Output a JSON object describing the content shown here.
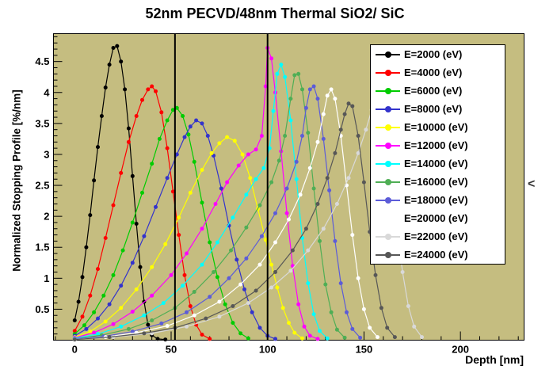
{
  "title": "52nm PECVD/48nm Thermal SiO2/ SiC",
  "right_chevron": "<",
  "chart_data": {
    "type": "line",
    "title": "52nm PECVD/48nm Thermal SiO2/ SiC",
    "xlabel": "Depth [nm]",
    "ylabel": "Normalized Stopping Profile [%/nm]",
    "xlim": [
      -11,
      233
    ],
    "ylim": [
      0,
      4.95
    ],
    "x_ticks": [
      0,
      50,
      100,
      150,
      200
    ],
    "y_ticks": [
      0.5,
      1,
      1.5,
      2,
      2.5,
      3,
      3.5,
      4,
      4.5
    ],
    "plot_bg": "#c5bd80",
    "grid": false,
    "legend_position": "top-right",
    "vertical_lines": [
      52,
      100
    ],
    "series": [
      {
        "label": "E=2000 (eV)",
        "color": "#000000",
        "points": [
          [
            0,
            0.32
          ],
          [
            2,
            0.62
          ],
          [
            4,
            1.02
          ],
          [
            6,
            1.5
          ],
          [
            8,
            2.02
          ],
          [
            10,
            2.58
          ],
          [
            12,
            3.12
          ],
          [
            14,
            3.62
          ],
          [
            16,
            4.08
          ],
          [
            18,
            4.45
          ],
          [
            20,
            4.72
          ],
          [
            22,
            4.75
          ],
          [
            24,
            4.5
          ],
          [
            26,
            4.05
          ],
          [
            28,
            3.42
          ],
          [
            30,
            2.65
          ],
          [
            32,
            1.88
          ],
          [
            34,
            1.18
          ],
          [
            36,
            0.62
          ],
          [
            38,
            0.25
          ],
          [
            40,
            0.08
          ],
          [
            43,
            0.02
          ],
          [
            47,
            0.01
          ]
        ]
      },
      {
        "label": "E=4000 (eV)",
        "color": "#ff0000",
        "points": [
          [
            0,
            0.15
          ],
          [
            4,
            0.38
          ],
          [
            8,
            0.72
          ],
          [
            12,
            1.15
          ],
          [
            16,
            1.65
          ],
          [
            20,
            2.18
          ],
          [
            24,
            2.7
          ],
          [
            28,
            3.2
          ],
          [
            32,
            3.62
          ],
          [
            35,
            3.88
          ],
          [
            38,
            4.05
          ],
          [
            40,
            4.1
          ],
          [
            42,
            4.02
          ],
          [
            45,
            3.68
          ],
          [
            48,
            3.1
          ],
          [
            51,
            2.4
          ],
          [
            54,
            1.7
          ],
          [
            57,
            1.05
          ],
          [
            60,
            0.55
          ],
          [
            63,
            0.25
          ],
          [
            66,
            0.09
          ],
          [
            70,
            0.02
          ]
        ]
      },
      {
        "label": "E=6000 (eV)",
        "color": "#00cc00",
        "points": [
          [
            0,
            0.1
          ],
          [
            5,
            0.24
          ],
          [
            10,
            0.45
          ],
          [
            15,
            0.72
          ],
          [
            20,
            1.05
          ],
          [
            25,
            1.45
          ],
          [
            30,
            1.9
          ],
          [
            35,
            2.38
          ],
          [
            40,
            2.85
          ],
          [
            44,
            3.25
          ],
          [
            48,
            3.55
          ],
          [
            51,
            3.72
          ],
          [
            53,
            3.75
          ],
          [
            56,
            3.62
          ],
          [
            59,
            3.32
          ],
          [
            62,
            2.88
          ],
          [
            66,
            2.22
          ],
          [
            70,
            1.58
          ],
          [
            74,
            1.02
          ],
          [
            78,
            0.58
          ],
          [
            82,
            0.28
          ],
          [
            86,
            0.11
          ],
          [
            90,
            0.03
          ]
        ]
      },
      {
        "label": "E=8000 (eV)",
        "color": "#3333cc",
        "points": [
          [
            0,
            0.07
          ],
          [
            6,
            0.18
          ],
          [
            12,
            0.35
          ],
          [
            18,
            0.58
          ],
          [
            24,
            0.88
          ],
          [
            30,
            1.25
          ],
          [
            36,
            1.68
          ],
          [
            42,
            2.15
          ],
          [
            48,
            2.62
          ],
          [
            53,
            3.0
          ],
          [
            57,
            3.28
          ],
          [
            60,
            3.45
          ],
          [
            63,
            3.55
          ],
          [
            66,
            3.5
          ],
          [
            69,
            3.3
          ],
          [
            72,
            2.98
          ],
          [
            76,
            2.45
          ],
          [
            80,
            1.85
          ],
          [
            84,
            1.3
          ],
          [
            88,
            0.82
          ],
          [
            92,
            0.45
          ],
          [
            96,
            0.2
          ],
          [
            100,
            0.07
          ],
          [
            104,
            0.02
          ]
        ]
      },
      {
        "label": "E=10000 (eV)",
        "color": "#ffff00",
        "points": [
          [
            0,
            0.05
          ],
          [
            8,
            0.14
          ],
          [
            16,
            0.3
          ],
          [
            24,
            0.52
          ],
          [
            32,
            0.82
          ],
          [
            40,
            1.18
          ],
          [
            47,
            1.55
          ],
          [
            54,
            1.98
          ],
          [
            60,
            2.38
          ],
          [
            66,
            2.75
          ],
          [
            71,
            3.02
          ],
          [
            75,
            3.18
          ],
          [
            79,
            3.28
          ],
          [
            83,
            3.22
          ],
          [
            87,
            3.0
          ],
          [
            91,
            2.62
          ],
          [
            95,
            2.12
          ],
          [
            99,
            1.62
          ],
          [
            102,
            1.22
          ],
          [
            105,
            0.85
          ],
          [
            108,
            0.52
          ],
          [
            111,
            0.28
          ],
          [
            114,
            0.12
          ],
          [
            118,
            0.03
          ]
        ]
      },
      {
        "label": "E=12000 (eV)",
        "color": "#ff00ff",
        "points": [
          [
            0,
            0.04
          ],
          [
            10,
            0.12
          ],
          [
            20,
            0.26
          ],
          [
            30,
            0.46
          ],
          [
            40,
            0.72
          ],
          [
            50,
            1.05
          ],
          [
            58,
            1.4
          ],
          [
            66,
            1.8
          ],
          [
            73,
            2.2
          ],
          [
            79,
            2.55
          ],
          [
            85,
            2.82
          ],
          [
            90,
            3.0
          ],
          [
            94,
            3.08
          ],
          [
            97,
            3.3
          ],
          [
            99,
            4.1
          ],
          [
            100,
            4.72
          ],
          [
            102,
            4.55
          ],
          [
            104,
            4.0
          ],
          [
            107,
            3.05
          ],
          [
            110,
            2.05
          ],
          [
            113,
            1.2
          ],
          [
            116,
            0.58
          ],
          [
            119,
            0.22
          ],
          [
            122,
            0.07
          ],
          [
            126,
            0.02
          ]
        ]
      },
      {
        "label": "E=14000 (eV)",
        "color": "#00ffff",
        "points": [
          [
            0,
            0.03
          ],
          [
            12,
            0.1
          ],
          [
            24,
            0.22
          ],
          [
            36,
            0.4
          ],
          [
            46,
            0.6
          ],
          [
            56,
            0.88
          ],
          [
            66,
            1.22
          ],
          [
            74,
            1.58
          ],
          [
            82,
            1.98
          ],
          [
            89,
            2.35
          ],
          [
            94,
            2.6
          ],
          [
            98,
            2.78
          ],
          [
            101,
            3.1
          ],
          [
            103,
            3.7
          ],
          [
            105,
            4.3
          ],
          [
            107,
            4.45
          ],
          [
            109,
            4.25
          ],
          [
            112,
            3.55
          ],
          [
            115,
            2.6
          ],
          [
            118,
            1.65
          ],
          [
            121,
            0.92
          ],
          [
            124,
            0.42
          ],
          [
            127,
            0.15
          ],
          [
            131,
            0.03
          ]
        ]
      },
      {
        "label": "E=16000 (eV)",
        "color": "#4fae55",
        "points": [
          [
            0,
            0.02
          ],
          [
            14,
            0.08
          ],
          [
            28,
            0.18
          ],
          [
            40,
            0.32
          ],
          [
            52,
            0.52
          ],
          [
            62,
            0.78
          ],
          [
            72,
            1.1
          ],
          [
            81,
            1.45
          ],
          [
            89,
            1.82
          ],
          [
            96,
            2.18
          ],
          [
            102,
            2.55
          ],
          [
            106,
            2.9
          ],
          [
            109,
            3.3
          ],
          [
            112,
            3.9
          ],
          [
            114,
            4.28
          ],
          [
            116,
            4.3
          ],
          [
            118,
            4.05
          ],
          [
            121,
            3.35
          ],
          [
            124,
            2.45
          ],
          [
            127,
            1.6
          ],
          [
            130,
            0.9
          ],
          [
            133,
            0.45
          ],
          [
            136,
            0.17
          ],
          [
            140,
            0.04
          ]
        ]
      },
      {
        "label": "E=18000 (eV)",
        "color": "#5c5cd8",
        "points": [
          [
            0,
            0.02
          ],
          [
            15,
            0.06
          ],
          [
            30,
            0.14
          ],
          [
            45,
            0.27
          ],
          [
            58,
            0.45
          ],
          [
            70,
            0.7
          ],
          [
            80,
            1.0
          ],
          [
            89,
            1.32
          ],
          [
            97,
            1.68
          ],
          [
            104,
            2.05
          ],
          [
            110,
            2.45
          ],
          [
            115,
            2.88
          ],
          [
            118,
            3.3
          ],
          [
            120,
            3.75
          ],
          [
            122,
            4.05
          ],
          [
            124,
            4.1
          ],
          [
            126,
            3.9
          ],
          [
            129,
            3.25
          ],
          [
            132,
            2.42
          ],
          [
            135,
            1.6
          ],
          [
            138,
            0.92
          ],
          [
            141,
            0.45
          ],
          [
            144,
            0.18
          ],
          [
            148,
            0.04
          ]
        ]
      },
      {
        "label": "E=20000 (eV)",
        "color": "#ffffff",
        "points": [
          [
            0,
            0.01
          ],
          [
            16,
            0.05
          ],
          [
            32,
            0.12
          ],
          [
            48,
            0.23
          ],
          [
            62,
            0.4
          ],
          [
            75,
            0.62
          ],
          [
            86,
            0.9
          ],
          [
            96,
            1.22
          ],
          [
            104,
            1.58
          ],
          [
            111,
            1.95
          ],
          [
            117,
            2.35
          ],
          [
            122,
            2.78
          ],
          [
            126,
            3.2
          ],
          [
            129,
            3.65
          ],
          [
            131,
            3.95
          ],
          [
            133,
            4.05
          ],
          [
            135,
            3.9
          ],
          [
            138,
            3.3
          ],
          [
            141,
            2.5
          ],
          [
            144,
            1.7
          ],
          [
            147,
            1.0
          ],
          [
            150,
            0.5
          ],
          [
            153,
            0.2
          ],
          [
            157,
            0.05
          ]
        ]
      },
      {
        "label": "E=22000 (eV)",
        "color": "#d9d9d9",
        "points": [
          [
            0,
            0.01
          ],
          [
            20,
            0.05
          ],
          [
            40,
            0.11
          ],
          [
            58,
            0.22
          ],
          [
            75,
            0.38
          ],
          [
            90,
            0.6
          ],
          [
            102,
            0.85
          ],
          [
            112,
            1.12
          ],
          [
            121,
            1.45
          ],
          [
            129,
            1.8
          ],
          [
            136,
            2.2
          ],
          [
            142,
            2.62
          ],
          [
            147,
            3.02
          ],
          [
            151,
            3.4
          ],
          [
            154,
            3.72
          ],
          [
            156,
            3.88
          ],
          [
            158,
            3.85
          ],
          [
            161,
            3.45
          ],
          [
            164,
            2.7
          ],
          [
            167,
            1.85
          ],
          [
            170,
            1.1
          ],
          [
            173,
            0.55
          ],
          [
            176,
            0.22
          ],
          [
            180,
            0.05
          ]
        ]
      },
      {
        "label": "E=24000 (eV)",
        "color": "#575757",
        "points": [
          [
            0,
            0.01
          ],
          [
            18,
            0.05
          ],
          [
            36,
            0.11
          ],
          [
            52,
            0.2
          ],
          [
            68,
            0.35
          ],
          [
            82,
            0.55
          ],
          [
            94,
            0.8
          ],
          [
            104,
            1.1
          ],
          [
            113,
            1.45
          ],
          [
            120,
            1.8
          ],
          [
            126,
            2.2
          ],
          [
            131,
            2.62
          ],
          [
            135,
            3.02
          ],
          [
            138,
            3.4
          ],
          [
            140,
            3.65
          ],
          [
            142,
            3.82
          ],
          [
            144,
            3.78
          ],
          [
            147,
            3.3
          ],
          [
            150,
            2.55
          ],
          [
            153,
            1.75
          ],
          [
            156,
            1.05
          ],
          [
            159,
            0.52
          ],
          [
            162,
            0.2
          ],
          [
            166,
            0.05
          ]
        ]
      }
    ]
  }
}
